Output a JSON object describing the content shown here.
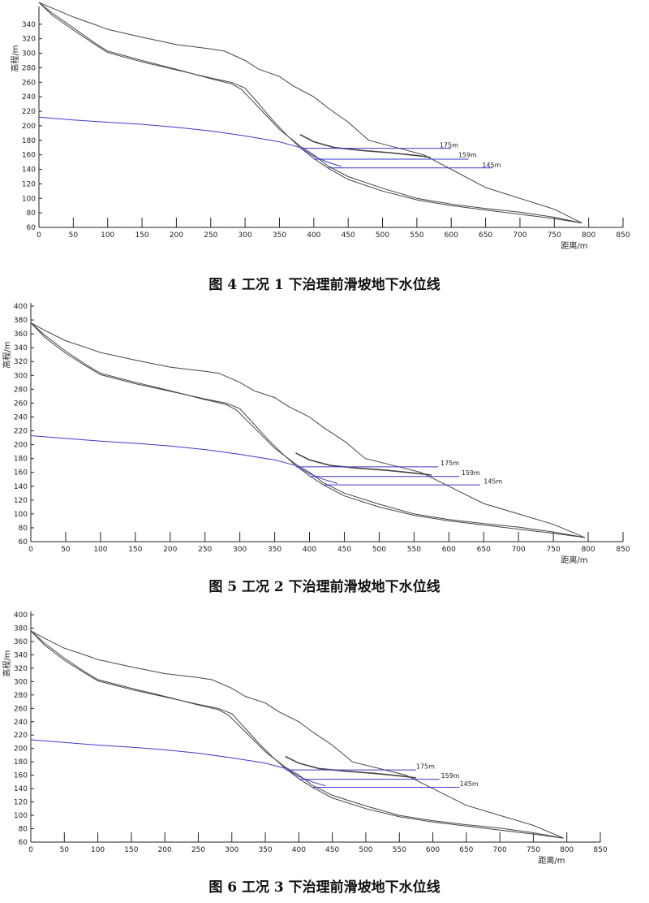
{
  "chart_data": [
    {
      "type": "line",
      "caption": "图 4  工况 1 下治理前滑坡地下水位线",
      "xlabel": "距离/m",
      "ylabel": "高程/m",
      "xlim": [
        0,
        850
      ],
      "ylim": [
        60,
        360
      ],
      "x_ticks": [
        0,
        50,
        100,
        150,
        200,
        250,
        300,
        350,
        400,
        450,
        500,
        550,
        600,
        650,
        700,
        750,
        800,
        850
      ],
      "y_ticks": [
        60,
        80,
        100,
        120,
        140,
        160,
        180,
        200,
        220,
        240,
        260,
        280,
        300,
        320,
        340
      ],
      "colors": {
        "slope": "#444444",
        "water": "#3a3acc"
      },
      "series": [
        {
          "role": "ground",
          "color": "#444444",
          "x": [
            0,
            20,
            50,
            80,
            100,
            150,
            200,
            250,
            270,
            300,
            320,
            350,
            370,
            400,
            420,
            450,
            480,
            520,
            560,
            600,
            650,
            700,
            750,
            790
          ],
          "y": [
            370,
            362,
            350,
            340,
            333,
            322,
            312,
            306,
            303,
            290,
            278,
            268,
            255,
            240,
            225,
            205,
            180,
            170,
            160,
            140,
            115,
            100,
            85,
            66
          ]
        },
        {
          "role": "slip-1",
          "color": "#444444",
          "x": [
            0,
            20,
            50,
            80,
            100,
            150,
            200,
            250,
            280,
            295,
            310,
            330,
            350,
            380,
            400,
            420,
            450,
            500,
            550,
            600,
            650,
            700,
            750,
            790
          ],
          "y": [
            370,
            355,
            335,
            315,
            303,
            290,
            278,
            265,
            258,
            250,
            235,
            215,
            195,
            172,
            160,
            145,
            130,
            114,
            100,
            92,
            86,
            81,
            74,
            66
          ]
        },
        {
          "role": "slip-2",
          "color": "#444444",
          "x": [
            0,
            20,
            50,
            80,
            100,
            150,
            200,
            250,
            280,
            300,
            320,
            340,
            360,
            380,
            400,
            420,
            450,
            500,
            550,
            600,
            650,
            700,
            750,
            790
          ],
          "y": [
            370,
            352,
            332,
            313,
            301,
            288,
            277,
            266,
            260,
            252,
            230,
            208,
            188,
            170,
            155,
            142,
            126,
            110,
            98,
            90,
            84,
            78,
            72,
            66
          ]
        },
        {
          "role": "slip-3",
          "color": "#444444",
          "x": [
            380,
            400,
            430,
            470,
            510,
            540,
            560,
            570
          ],
          "y": [
            188,
            178,
            170,
            166,
            163,
            160,
            158,
            156
          ]
        },
        {
          "role": "water-table",
          "color": "#3a3acc",
          "x": [
            0,
            50,
            100,
            150,
            200,
            250,
            300,
            350,
            380,
            400,
            420,
            440
          ],
          "y": [
            212,
            208,
            205,
            202,
            198,
            193,
            186,
            178,
            170,
            158,
            150,
            144
          ]
        },
        {
          "role": "level-175",
          "color": "#3a3acc",
          "x": [
            380,
            600
          ],
          "y": [
            169,
            169
          ]
        },
        {
          "role": "level-159",
          "color": "#3a3acc",
          "x": [
            400,
            625
          ],
          "y": [
            154,
            154
          ]
        },
        {
          "role": "level-145",
          "color": "#3a3acc",
          "x": [
            420,
            660
          ],
          "y": [
            142,
            142
          ]
        }
      ],
      "annotations": [
        {
          "text": "175m",
          "x": 583,
          "y": 170
        },
        {
          "text": "159m",
          "x": 610,
          "y": 157
        },
        {
          "text": "145m",
          "x": 645,
          "y": 143
        }
      ]
    },
    {
      "type": "line",
      "caption": "图 5  工况 2 下治理前滑坡地下水位线",
      "xlabel": "距离/m",
      "ylabel": "高程/m",
      "xlim": [
        0,
        850
      ],
      "ylim": [
        60,
        400
      ],
      "x_ticks": [
        0,
        50,
        100,
        150,
        200,
        250,
        300,
        350,
        400,
        450,
        500,
        550,
        600,
        650,
        700,
        750,
        800,
        850
      ],
      "y_ticks": [
        60,
        80,
        100,
        120,
        140,
        160,
        180,
        200,
        220,
        240,
        260,
        280,
        300,
        320,
        340,
        360,
        380,
        400
      ],
      "colors": {
        "slope": "#444444",
        "water": "#3a3acc"
      },
      "series": [
        {
          "role": "ground",
          "color": "#444444",
          "x": [
            0,
            20,
            50,
            80,
            100,
            150,
            200,
            250,
            270,
            300,
            320,
            350,
            370,
            400,
            420,
            450,
            480,
            520,
            560,
            600,
            650,
            700,
            750,
            795
          ],
          "y": [
            376,
            365,
            350,
            340,
            333,
            322,
            312,
            306,
            303,
            290,
            278,
            268,
            255,
            240,
            225,
            205,
            180,
            170,
            160,
            140,
            115,
            100,
            85,
            66
          ]
        },
        {
          "role": "slip-1",
          "color": "#444444",
          "x": [
            0,
            20,
            50,
            80,
            100,
            150,
            200,
            250,
            280,
            295,
            310,
            330,
            350,
            380,
            400,
            420,
            450,
            500,
            550,
            600,
            650,
            700,
            750,
            795
          ],
          "y": [
            376,
            358,
            335,
            315,
            303,
            290,
            278,
            265,
            258,
            250,
            235,
            215,
            195,
            172,
            160,
            145,
            130,
            114,
            100,
            92,
            86,
            81,
            74,
            66
          ]
        },
        {
          "role": "slip-2",
          "color": "#444444",
          "x": [
            0,
            20,
            50,
            80,
            100,
            150,
            200,
            250,
            280,
            300,
            320,
            340,
            360,
            380,
            400,
            420,
            450,
            500,
            550,
            600,
            650,
            700,
            750,
            795
          ],
          "y": [
            376,
            355,
            332,
            313,
            301,
            288,
            277,
            266,
            260,
            252,
            230,
            208,
            188,
            170,
            155,
            142,
            126,
            110,
            98,
            90,
            84,
            78,
            72,
            66
          ]
        },
        {
          "role": "slip-3",
          "color": "#444444",
          "x": [
            380,
            400,
            430,
            470,
            510,
            540,
            560,
            575
          ],
          "y": [
            188,
            178,
            170,
            166,
            163,
            160,
            158,
            156
          ]
        },
        {
          "role": "water-table",
          "color": "#3a3acc",
          "x": [
            0,
            50,
            100,
            150,
            200,
            250,
            300,
            350,
            380,
            400,
            420,
            440
          ],
          "y": [
            213,
            209,
            205,
            202,
            198,
            193,
            186,
            178,
            170,
            158,
            150,
            144
          ]
        },
        {
          "role": "level-175",
          "color": "#3a3acc",
          "x": [
            380,
            585
          ],
          "y": [
            168,
            168
          ]
        },
        {
          "role": "level-159",
          "color": "#3a3acc",
          "x": [
            400,
            615
          ],
          "y": [
            154,
            154
          ]
        },
        {
          "role": "level-145",
          "color": "#3a3acc",
          "x": [
            420,
            645
          ],
          "y": [
            142,
            142
          ]
        }
      ],
      "annotations": [
        {
          "text": "175m",
          "x": 588,
          "y": 170
        },
        {
          "text": "159m",
          "x": 618,
          "y": 156
        },
        {
          "text": "145m",
          "x": 650,
          "y": 144
        }
      ]
    },
    {
      "type": "line",
      "caption": "图 6  工况 3 下治理前滑坡地下水位线",
      "xlabel": "距离/m",
      "ylabel": "高程/m",
      "xlim": [
        0,
        850
      ],
      "ylim": [
        60,
        400
      ],
      "x_ticks": [
        0,
        50,
        100,
        150,
        200,
        250,
        300,
        350,
        400,
        450,
        500,
        550,
        600,
        650,
        700,
        750,
        800,
        850
      ],
      "y_ticks": [
        60,
        80,
        100,
        120,
        140,
        160,
        180,
        200,
        220,
        240,
        260,
        280,
        300,
        320,
        340,
        360,
        380,
        400
      ],
      "colors": {
        "slope": "#444444",
        "water": "#3a3acc"
      },
      "series": [
        {
          "role": "ground",
          "color": "#444444",
          "x": [
            0,
            20,
            50,
            80,
            100,
            150,
            200,
            250,
            270,
            300,
            320,
            350,
            370,
            400,
            420,
            450,
            480,
            520,
            560,
            600,
            650,
            700,
            750,
            795
          ],
          "y": [
            376,
            365,
            350,
            340,
            333,
            322,
            312,
            306,
            303,
            290,
            278,
            268,
            255,
            240,
            225,
            205,
            180,
            170,
            160,
            140,
            115,
            100,
            85,
            66
          ]
        },
        {
          "role": "slip-1",
          "color": "#444444",
          "x": [
            0,
            20,
            50,
            80,
            100,
            150,
            200,
            250,
            280,
            295,
            310,
            330,
            350,
            380,
            400,
            420,
            450,
            500,
            550,
            600,
            650,
            700,
            750,
            795
          ],
          "y": [
            376,
            358,
            335,
            315,
            303,
            290,
            278,
            265,
            258,
            250,
            235,
            215,
            195,
            172,
            160,
            145,
            130,
            114,
            100,
            92,
            86,
            81,
            74,
            66
          ]
        },
        {
          "role": "slip-2",
          "color": "#444444",
          "x": [
            0,
            20,
            50,
            80,
            100,
            150,
            200,
            250,
            280,
            300,
            320,
            340,
            360,
            380,
            400,
            420,
            450,
            500,
            550,
            600,
            650,
            700,
            750,
            795
          ],
          "y": [
            376,
            355,
            332,
            313,
            301,
            288,
            277,
            266,
            260,
            252,
            230,
            208,
            188,
            170,
            155,
            142,
            126,
            110,
            98,
            90,
            84,
            78,
            72,
            66
          ]
        },
        {
          "role": "slip-3",
          "color": "#444444",
          "x": [
            380,
            400,
            430,
            470,
            510,
            540,
            560,
            575
          ],
          "y": [
            188,
            178,
            170,
            166,
            163,
            160,
            158,
            156
          ]
        },
        {
          "role": "water-table",
          "color": "#3a3acc",
          "x": [
            0,
            50,
            100,
            150,
            200,
            250,
            300,
            350,
            380,
            400,
            420,
            440
          ],
          "y": [
            213,
            209,
            205,
            202,
            198,
            193,
            186,
            178,
            170,
            158,
            150,
            144
          ]
        },
        {
          "role": "level-175",
          "color": "#3a3acc",
          "x": [
            380,
            575
          ],
          "y": [
            168,
            168
          ]
        },
        {
          "role": "level-159",
          "color": "#3a3acc",
          "x": [
            400,
            610
          ],
          "y": [
            154,
            154
          ]
        },
        {
          "role": "level-145",
          "color": "#3a3acc",
          "x": [
            420,
            640
          ],
          "y": [
            142,
            142
          ]
        }
      ],
      "annotations": [
        {
          "text": "175m",
          "x": 575,
          "y": 170
        },
        {
          "text": "159m",
          "x": 612,
          "y": 156
        },
        {
          "text": "145m",
          "x": 640,
          "y": 144
        }
      ]
    }
  ]
}
